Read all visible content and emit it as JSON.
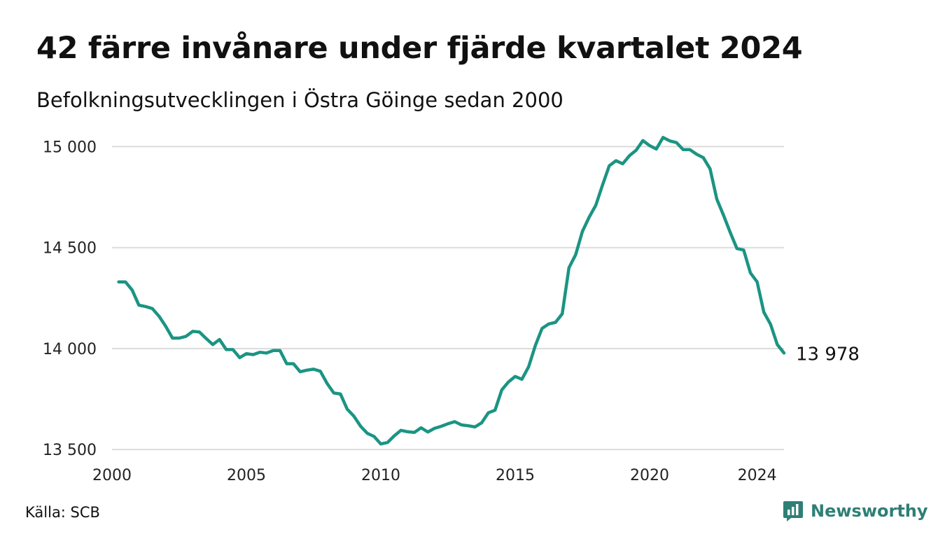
{
  "title": "42 färre invånare under fjärde kvartalet 2024",
  "subtitle": "Befolkningsutvecklingen i Östra Göinge sedan 2000",
  "source": "Källa: SCB",
  "brand": {
    "name": "Newsworthy",
    "icon": "newsworthy-chart-icon",
    "color": "#2e7f76"
  },
  "chart_data": {
    "type": "line",
    "title": "42 färre invånare under fjärde kvartalet 2024",
    "subtitle": "Befolkningsutvecklingen i Östra Göinge sedan 2000",
    "xlabel": "",
    "ylabel": "",
    "line_color": "#1b9483",
    "grid_color": "#dcdcdc",
    "grid": true,
    "xlim": [
      2000,
      2025
    ],
    "ylim": [
      13480,
      15050
    ],
    "x_ticks": [
      {
        "value": 2000,
        "label": "2000"
      },
      {
        "value": 2005,
        "label": "2005"
      },
      {
        "value": 2010,
        "label": "2010"
      },
      {
        "value": 2015,
        "label": "2015"
      },
      {
        "value": 2020,
        "label": "2020"
      },
      {
        "value": 2024,
        "label": "2024"
      }
    ],
    "y_ticks": [
      {
        "value": 13500,
        "label": "13 500"
      },
      {
        "value": 14000,
        "label": "14 000"
      },
      {
        "value": 14500,
        "label": "14 500"
      },
      {
        "value": 15000,
        "label": "15 000"
      }
    ],
    "end_label": "13 978",
    "series": [
      {
        "x": [
          2000.25,
          2000.5,
          2000.75,
          2001.0,
          2001.25,
          2001.5,
          2001.75,
          2002.0,
          2002.25,
          2002.5,
          2002.75,
          2003.0,
          2003.25,
          2003.5,
          2003.75,
          2004.0,
          2004.25,
          2004.5,
          2004.75,
          2005.0,
          2005.25,
          2005.5,
          2005.75,
          2006.0,
          2006.25,
          2006.5,
          2006.75,
          2007.0,
          2007.25,
          2007.5,
          2007.75,
          2008.0,
          2008.25,
          2008.5,
          2008.75,
          2009.0,
          2009.25,
          2009.5,
          2009.75,
          2010.0,
          2010.25,
          2010.5,
          2010.75,
          2011.0,
          2011.25,
          2011.5,
          2011.75,
          2012.0,
          2012.25,
          2012.5,
          2012.75,
          2013.0,
          2013.25,
          2013.5,
          2013.75,
          2014.0,
          2014.25,
          2014.5,
          2014.75,
          2015.0,
          2015.25,
          2015.5,
          2015.75,
          2016.0,
          2016.25,
          2016.5,
          2016.75,
          2017.0,
          2017.25,
          2017.5,
          2017.75,
          2018.0,
          2018.25,
          2018.5,
          2018.75,
          2019.0,
          2019.25,
          2019.5,
          2019.75,
          2020.0,
          2020.25,
          2020.5,
          2020.75,
          2021.0,
          2021.25,
          2021.5,
          2021.75,
          2022.0,
          2022.25,
          2022.5,
          2022.75,
          2023.0,
          2023.25,
          2023.5,
          2023.75,
          2024.0,
          2024.25,
          2024.5,
          2024.75,
          2025.0
        ],
        "values": [
          14330,
          14330,
          14290,
          14215,
          14208,
          14198,
          14160,
          14110,
          14052,
          14052,
          14060,
          14085,
          14082,
          14050,
          14020,
          14045,
          13995,
          13995,
          13955,
          13975,
          13970,
          13982,
          13978,
          13990,
          13990,
          13925,
          13925,
          13885,
          13893,
          13898,
          13888,
          13828,
          13780,
          13775,
          13700,
          13665,
          13615,
          13580,
          13565,
          13528,
          13535,
          13568,
          13595,
          13588,
          13585,
          13608,
          13587,
          13605,
          13615,
          13628,
          13638,
          13622,
          13618,
          13612,
          13632,
          13682,
          13695,
          13795,
          13835,
          13862,
          13848,
          13910,
          14015,
          14100,
          14122,
          14130,
          14172,
          14400,
          14465,
          14580,
          14650,
          14710,
          14810,
          14905,
          14930,
          14915,
          14955,
          14982,
          15030,
          15005,
          14988,
          15045,
          15028,
          15020,
          14985,
          14985,
          14962,
          14945,
          14890,
          14740,
          14660,
          14575,
          14495,
          14488,
          14375,
          14330,
          14180,
          14120,
          14020,
          13978
        ]
      }
    ]
  }
}
